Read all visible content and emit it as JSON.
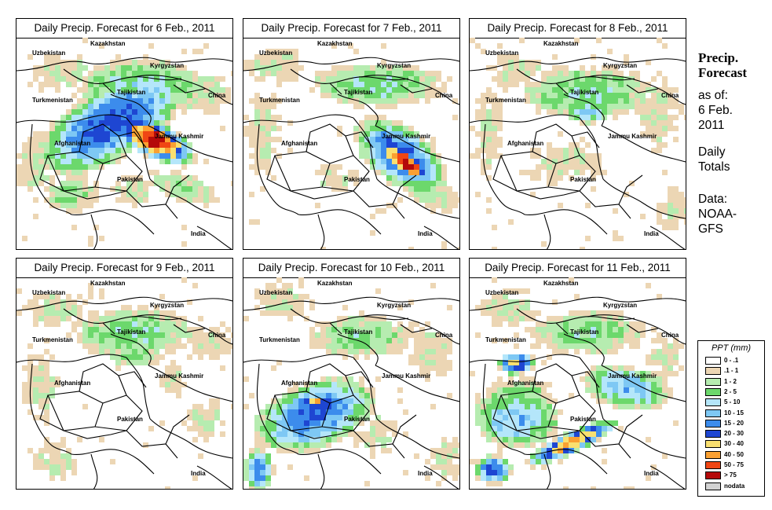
{
  "panels": [
    {
      "title": "Daily Precip. Forecast for  6 Feb., 2011",
      "pattern": 0
    },
    {
      "title": "Daily Precip. Forecast for  7 Feb., 2011",
      "pattern": 1
    },
    {
      "title": "Daily Precip. Forecast for  8 Feb., 2011",
      "pattern": 2
    },
    {
      "title": "Daily Precip. Forecast for  9 Feb., 2011",
      "pattern": 3
    },
    {
      "title": "Daily Precip. Forecast for  10 Feb., 2011",
      "pattern": 4
    },
    {
      "title": "Daily Precip. Forecast for  11 Feb., 2011",
      "pattern": 5
    }
  ],
  "map_labels": {
    "kazakhstan": "Kazakhstan",
    "uzbekistan": "Uzbekistan",
    "kyrgyzstan": "Kyrgyzstan",
    "tajikistan": "Tajikistan",
    "turkmenistan": "Turkmenistan",
    "china": "China",
    "jammu_kashmir": "Jammu Kashmir",
    "afghanistan": "Afghanistan",
    "pakistan": "Pakistan",
    "india": "India"
  },
  "side": {
    "title_line1": "Precip.",
    "title_line2": "Forecast",
    "asof_line1": "as of:",
    "asof_line2": "6 Feb.",
    "asof_line3": "2011",
    "daily_line1": "Daily",
    "daily_line2": "Totals",
    "data_line1": "Data:",
    "data_line2": "NOAA-",
    "data_line3": "GFS"
  },
  "legend": {
    "title": "PPT (mm)",
    "items": [
      {
        "label": "0 - .1",
        "color": "#ffffff"
      },
      {
        "label": ".1 - 1",
        "color": "#ecd6b4"
      },
      {
        "label": "1 - 2",
        "color": "#b6ecb0"
      },
      {
        "label": "2 - 5",
        "color": "#6cd86c"
      },
      {
        "label": "5 - 10",
        "color": "#b4e6fa"
      },
      {
        "label": "10 - 15",
        "color": "#7ec8f4"
      },
      {
        "label": "15 - 20",
        "color": "#3c8cec"
      },
      {
        "label": "20 - 30",
        "color": "#1e46d2"
      },
      {
        "label": "30 - 40",
        "color": "#fae070"
      },
      {
        "label": "40 - 50",
        "color": "#faa032"
      },
      {
        "label": "50 - 75",
        "color": "#f04614"
      },
      {
        "label": "> 75",
        "color": "#b40a0a"
      },
      {
        "label": "nodata",
        "color": "#d2d2d2"
      }
    ]
  }
}
